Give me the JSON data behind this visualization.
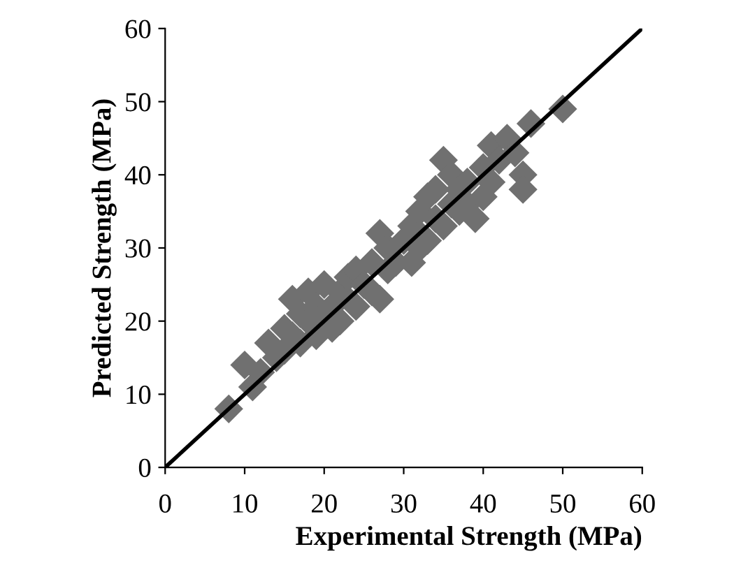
{
  "chart_data": {
    "type": "scatter",
    "xlabel": "Experimental Strength (MPa)",
    "ylabel": "Predicted Strength (MPa)",
    "xlim": [
      0,
      60
    ],
    "ylim": [
      0,
      60
    ],
    "xticks": [
      0,
      10,
      20,
      30,
      40,
      50,
      60
    ],
    "yticks": [
      0,
      10,
      20,
      30,
      40,
      50,
      60
    ],
    "grid": false,
    "series": [
      {
        "marker": "diamond",
        "color": "#707070",
        "x": [
          8,
          10,
          11,
          12,
          13,
          14,
          15,
          15,
          16,
          16,
          17,
          17,
          18,
          18,
          19,
          19,
          20,
          20,
          21,
          21,
          22,
          22,
          23,
          24,
          24,
          25,
          26,
          26,
          27,
          27,
          28,
          28,
          29,
          30,
          31,
          31,
          32,
          32,
          33,
          33,
          34,
          34,
          35,
          35,
          36,
          36,
          37,
          37,
          38,
          38,
          39,
          40,
          40,
          41,
          41,
          42,
          43,
          44,
          45,
          45,
          46,
          50
        ],
        "values": [
          8,
          14,
          11,
          13,
          17,
          15,
          16,
          19,
          23,
          18,
          17,
          21,
          20,
          24,
          22,
          18,
          25,
          20,
          22,
          19,
          24,
          20,
          26,
          27,
          22,
          25,
          28,
          24,
          32,
          23,
          30,
          27,
          28,
          31,
          33,
          28,
          35,
          30,
          31,
          37,
          34,
          38,
          42,
          33,
          36,
          40,
          35,
          38,
          39,
          36,
          34,
          37,
          41,
          44,
          39,
          42,
          45,
          43,
          40,
          38,
          47,
          49
        ]
      },
      {
        "type": "line",
        "color": "#000000",
        "x": [
          0,
          60
        ],
        "values": [
          0,
          60
        ]
      }
    ]
  }
}
